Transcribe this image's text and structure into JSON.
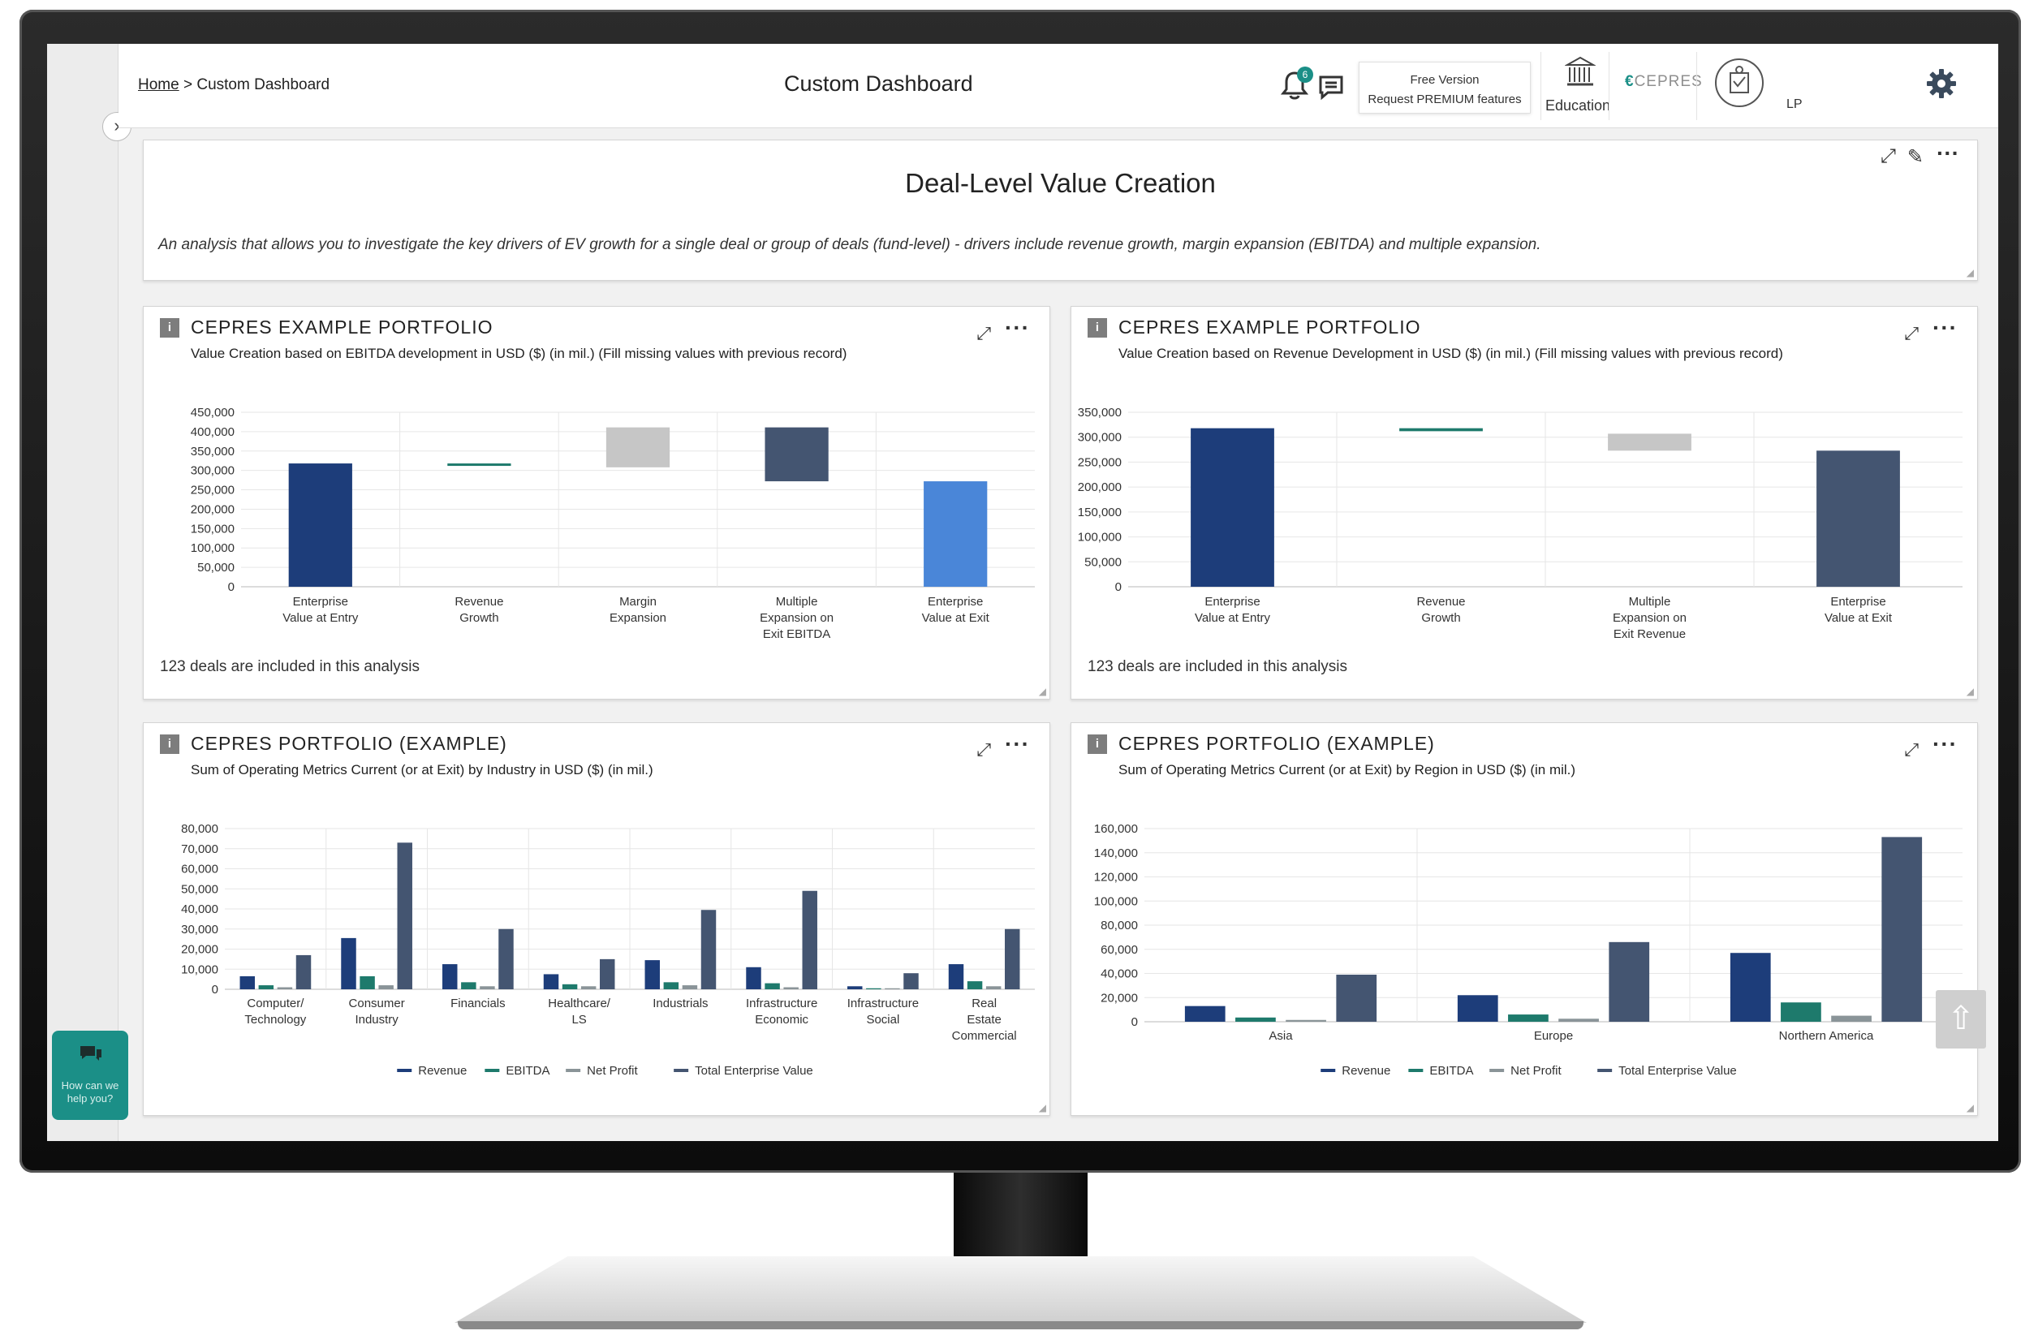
{
  "breadcrumb": {
    "home": "Home",
    "separator": ">",
    "current": "Custom Dashboard"
  },
  "page": {
    "title": "Custom Dashboard"
  },
  "header": {
    "notification_count": "6",
    "premium_line1": "Free Version",
    "premium_line2": "Request PREMIUM features",
    "education_label": "Education",
    "brand_name": "CEPRES",
    "user_role": "LP"
  },
  "value_creation": {
    "title": "Deal-Level Value Creation",
    "description": "An analysis that allows you to investigate the key drivers of EV growth for a single deal or group of deals (fund-level) - drivers include revenue growth, margin expansion (EBITDA) and multiple expansion."
  },
  "panels": {
    "ebitda": {
      "title": "CEPRES EXAMPLE PORTFOLIO",
      "subtitle": "Value Creation based on EBITDA development in USD ($) (in mil.) (Fill missing values with previous record)",
      "note": "123 deals are included in this analysis"
    },
    "revenue": {
      "title": "CEPRES EXAMPLE PORTFOLIO",
      "subtitle": "Value Creation based on Revenue Development in USD ($) (in mil.) (Fill missing values with previous record)",
      "note": "123 deals are included in this analysis"
    },
    "industry": {
      "title": "CEPRES PORTFOLIO (EXAMPLE)",
      "subtitle": "Sum of Operating Metrics Current (or at Exit) by Industry in USD ($) (in mil.)"
    },
    "region": {
      "title": "CEPRES PORTFOLIO (EXAMPLE)",
      "subtitle": "Sum of Operating Metrics Current (or at Exit) by Region in USD ($) (in mil.)"
    }
  },
  "chat_widget": {
    "text": "How can we help you?"
  },
  "colors": {
    "accent": "#1b8f87",
    "navy": "#1d3d7a",
    "slate": "#445571",
    "teal": "#1e7a6c",
    "gray": "#8a9498",
    "light_gray": "#c6c6c6",
    "blue": "#4a86d8"
  },
  "chart_data": [
    {
      "id": "ebitda",
      "type": "waterfall",
      "categories": [
        [
          "Enterprise",
          "Value at Entry"
        ],
        [
          "Revenue",
          "Growth"
        ],
        [
          "Margin",
          "Expansion"
        ],
        [
          "Multiple",
          "Expansion on",
          "Exit EBITDA"
        ],
        [
          "Enterprise",
          "Value at Exit"
        ]
      ],
      "bars": [
        {
          "base": 0,
          "top": 318000,
          "color": "#1d3d7a"
        },
        {
          "base": 313000,
          "top": 318000,
          "color": "#1e7a6c"
        },
        {
          "base": 308000,
          "top": 411000,
          "color": "#c6c6c6"
        },
        {
          "base": 272000,
          "top": 411000,
          "color": "#445571"
        },
        {
          "base": 0,
          "top": 272000,
          "color": "#4a86d8"
        }
      ],
      "y_ticks": [
        "450,000",
        "400,000",
        "350,000",
        "300,000",
        "250,000",
        "200,000",
        "150,000",
        "100,000",
        "50,000",
        "0"
      ],
      "ylim": [
        0,
        450000
      ]
    },
    {
      "id": "revenue",
      "type": "waterfall",
      "categories": [
        [
          "Enterprise",
          "Value at Entry"
        ],
        [
          "Revenue",
          "Growth"
        ],
        [
          "Multiple",
          "Expansion  on",
          "Exit Revenue"
        ],
        [
          "Enterprise",
          "Value at Exit"
        ]
      ],
      "bars": [
        {
          "base": 0,
          "top": 318000,
          "color": "#1d3d7a"
        },
        {
          "base": 312000,
          "top": 318000,
          "color": "#1e7a6c"
        },
        {
          "base": 273000,
          "top": 307000,
          "color": "#c6c6c6"
        },
        {
          "base": 0,
          "top": 273000,
          "color": "#445571"
        }
      ],
      "y_ticks": [
        "350,000",
        "300,000",
        "250,000",
        "200,000",
        "150,000",
        "100,000",
        "50,000",
        "0"
      ],
      "ylim": [
        0,
        350000
      ]
    },
    {
      "id": "industry",
      "type": "bar",
      "categories": [
        [
          "Computer/",
          "Technology"
        ],
        [
          "Consumer",
          "Industry"
        ],
        [
          "Financials"
        ],
        [
          "Healthcare/",
          "LS"
        ],
        [
          "Industrials"
        ],
        [
          "Infrastructure",
          "Economic"
        ],
        [
          "Infrastructure",
          "Social"
        ],
        [
          "Real",
          "Estate",
          "Commercial"
        ]
      ],
      "series": [
        {
          "name": "Revenue",
          "color": "#1d3d7a",
          "values": [
            6500,
            25500,
            12500,
            7500,
            14500,
            11000,
            1500,
            12500
          ]
        },
        {
          "name": "EBITDA",
          "color": "#1e7a6c",
          "values": [
            2000,
            6500,
            3500,
            2500,
            3500,
            3000,
            500,
            4000
          ]
        },
        {
          "name": "Net Profit",
          "color": "#8a9498",
          "values": [
            1000,
            2000,
            1500,
            1500,
            2000,
            1000,
            500,
            1500
          ]
        },
        {
          "name": "Total Enterprise Value",
          "color": "#445571",
          "values": [
            17000,
            73000,
            30000,
            15000,
            39500,
            49000,
            8000,
            30000
          ]
        }
      ],
      "y_ticks": [
        "80,000",
        "70,000",
        "60,000",
        "50,000",
        "40,000",
        "30,000",
        "20,000",
        "10,000",
        "0"
      ],
      "ylim": [
        0,
        80000
      ]
    },
    {
      "id": "region",
      "type": "bar",
      "categories": [
        [
          "Asia"
        ],
        [
          "Europe"
        ],
        [
          "Northern America"
        ]
      ],
      "series": [
        {
          "name": "Revenue",
          "color": "#1d3d7a",
          "values": [
            13000,
            22000,
            57000
          ]
        },
        {
          "name": "EBITDA",
          "color": "#1e7a6c",
          "values": [
            3500,
            6000,
            16000
          ]
        },
        {
          "name": "Net Profit",
          "color": "#8a9498",
          "values": [
            1500,
            2500,
            5000
          ]
        },
        {
          "name": "Total Enterprise Value",
          "color": "#445571",
          "values": [
            39000,
            66000,
            153000
          ]
        }
      ],
      "y_ticks": [
        "160,000",
        "140,000",
        "120,000",
        "100,000",
        "80,000",
        "60,000",
        "40,000",
        "20,000",
        "0"
      ],
      "ylim": [
        0,
        160000
      ]
    }
  ]
}
